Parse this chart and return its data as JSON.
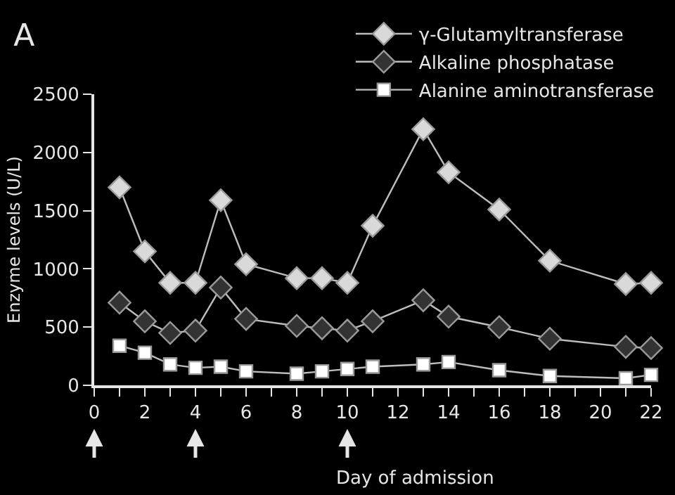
{
  "chart_data": {
    "type": "line",
    "title": "A",
    "xlabel": "Day of admission",
    "ylabel": "Enzyme levels (U/L)",
    "x": [
      1,
      2,
      3,
      4,
      5,
      6,
      8,
      9,
      10,
      11,
      13,
      14,
      16,
      18,
      21,
      22
    ],
    "series": [
      {
        "name": "γ-Glutamyltransferase",
        "color": "#d9d9d9",
        "marker": "diamond",
        "values": [
          1700,
          1150,
          880,
          880,
          1590,
          1040,
          920,
          920,
          880,
          1370,
          2200,
          1830,
          1510,
          1070,
          870,
          880
        ]
      },
      {
        "name": "Alkaline phosphatase",
        "color": "#333333",
        "marker": "diamond",
        "values": [
          710,
          550,
          450,
          470,
          840,
          570,
          510,
          490,
          470,
          550,
          730,
          590,
          500,
          400,
          330,
          320
        ]
      },
      {
        "name": "Alanine aminotransferase",
        "color": "#ffffff",
        "marker": "square",
        "values": [
          340,
          280,
          180,
          150,
          160,
          120,
          100,
          120,
          140,
          160,
          180,
          200,
          130,
          80,
          60,
          90
        ]
      }
    ],
    "xlim": [
      0,
      22
    ],
    "xticks": [
      0,
      {
        "value": 1,
        "label": null
      },
      2,
      {
        "value": 3,
        "label": null
      },
      4,
      {
        "value": 5,
        "label": null
      },
      6,
      {
        "value": 7,
        "label": null
      },
      8,
      {
        "value": 9,
        "label": null
      },
      10,
      {
        "value": 11,
        "label": null
      },
      12,
      {
        "value": 13,
        "label": null
      },
      14,
      {
        "value": 15,
        "label": null
      },
      16,
      {
        "value": 17,
        "label": null
      },
      18,
      {
        "value": 19,
        "label": null
      },
      20,
      {
        "value": 21,
        "label": null
      },
      22
    ],
    "ylim": [
      0,
      2500
    ],
    "yticks": [
      0,
      500,
      1000,
      1500,
      2000,
      2500
    ],
    "grid": false,
    "legend": "top right",
    "line_style": "solid"
  }
}
